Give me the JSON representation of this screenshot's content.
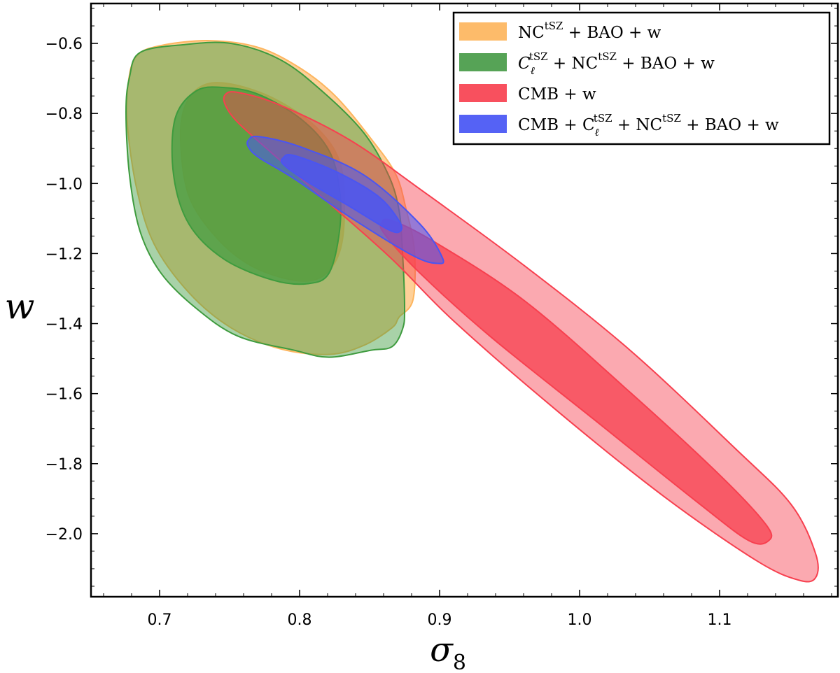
{
  "chart_data": {
    "type": "contour",
    "title": "",
    "xlabel": "σ",
    "xlabel_sub": "8",
    "ylabel": "w",
    "xlim": [
      0.651,
      1.1845
    ],
    "ylim": [
      -2.18,
      -0.486
    ],
    "xticks": [
      0.7,
      0.8,
      0.9,
      1.0,
      1.1
    ],
    "xtick_labels": [
      "0.7",
      "0.8",
      "0.9",
      "1.0",
      "1.1"
    ],
    "yticks": [
      -0.6,
      -0.8,
      -1.0,
      -1.2,
      -1.4,
      -1.6,
      -1.8,
      -2.0
    ],
    "ytick_labels": [
      "−0.6",
      "−0.8",
      "−1.0",
      "−1.2",
      "−1.4",
      "−1.6",
      "−1.8",
      "−2.0"
    ],
    "grid": false,
    "legend_placement": "top-right",
    "series": [
      {
        "name": "NC^tSZ + BAO + w",
        "legend": {
          "base": "NC",
          "sup": "tSZ",
          "rest": " + BAO + w"
        },
        "color": "#FDB55E",
        "outer": [
          [
            0.6775,
            -0.716
          ],
          [
            0.6835,
            -0.636
          ],
          [
            0.701,
            -0.606
          ],
          [
            0.736,
            -0.592
          ],
          [
            0.771,
            -0.612
          ],
          [
            0.801,
            -0.672
          ],
          [
            0.826,
            -0.752
          ],
          [
            0.851,
            -0.872
          ],
          [
            0.8685,
            -0.972
          ],
          [
            0.876,
            -1.072
          ],
          [
            0.882,
            -1.192
          ],
          [
            0.881,
            -1.332
          ],
          [
            0.871,
            -1.382
          ],
          [
            0.866,
            -1.412
          ],
          [
            0.846,
            -1.462
          ],
          [
            0.821,
            -1.488
          ],
          [
            0.786,
            -1.472
          ],
          [
            0.751,
            -1.412
          ],
          [
            0.721,
            -1.312
          ],
          [
            0.696,
            -1.172
          ],
          [
            0.6835,
            -1.012
          ],
          [
            0.677,
            -0.832
          ]
        ],
        "inner": [
          [
            0.7185,
            -0.776
          ],
          [
            0.731,
            -0.72
          ],
          [
            0.751,
            -0.716
          ],
          [
            0.781,
            -0.756
          ],
          [
            0.811,
            -0.836
          ],
          [
            0.8285,
            -0.936
          ],
          [
            0.832,
            -1.076
          ],
          [
            0.8285,
            -1.196
          ],
          [
            0.816,
            -1.266
          ],
          [
            0.796,
            -1.276
          ],
          [
            0.766,
            -1.236
          ],
          [
            0.741,
            -1.156
          ],
          [
            0.721,
            -1.036
          ],
          [
            0.715,
            -0.876
          ]
        ]
      },
      {
        "name": "C_ℓ^tSZ + NC^tSZ + BAO + w",
        "legend": {
          "base": "C",
          "sub": "ℓ",
          "sup": "tSZ",
          "rest": " + NC",
          "sup2": "tSZ",
          "rest2": " + BAO + w"
        },
        "color": "#3E9B3E",
        "outer": [
          [
            0.6785,
            -0.696
          ],
          [
            0.686,
            -0.626
          ],
          [
            0.716,
            -0.604
          ],
          [
            0.751,
            -0.6
          ],
          [
            0.786,
            -0.646
          ],
          [
            0.816,
            -0.736
          ],
          [
            0.846,
            -0.856
          ],
          [
            0.8635,
            -0.976
          ],
          [
            0.871,
            -1.076
          ],
          [
            0.8735,
            -1.196
          ],
          [
            0.875,
            -1.356
          ],
          [
            0.8735,
            -1.416
          ],
          [
            0.866,
            -1.466
          ],
          [
            0.851,
            -1.476
          ],
          [
            0.821,
            -1.496
          ],
          [
            0.796,
            -1.476
          ],
          [
            0.756,
            -1.436
          ],
          [
            0.726,
            -1.356
          ],
          [
            0.701,
            -1.256
          ],
          [
            0.686,
            -1.136
          ],
          [
            0.6785,
            -0.976
          ],
          [
            0.676,
            -0.796
          ]
        ],
        "inner": [
          [
            0.711,
            -0.816
          ],
          [
            0.726,
            -0.736
          ],
          [
            0.746,
            -0.726
          ],
          [
            0.771,
            -0.746
          ],
          [
            0.801,
            -0.816
          ],
          [
            0.821,
            -0.906
          ],
          [
            0.8285,
            -1.016
          ],
          [
            0.8285,
            -1.136
          ],
          [
            0.821,
            -1.256
          ],
          [
            0.806,
            -1.286
          ],
          [
            0.781,
            -1.276
          ],
          [
            0.746,
            -1.216
          ],
          [
            0.721,
            -1.116
          ],
          [
            0.71,
            -0.976
          ]
        ]
      },
      {
        "name": "CMB + w",
        "legend": {
          "base": "CMB + w"
        },
        "color": "#F7404F",
        "outer": [
          [
            0.747,
            -0.746
          ],
          [
            0.756,
            -0.74
          ],
          [
            0.786,
            -0.776
          ],
          [
            0.836,
            -0.876
          ],
          [
            0.886,
            -1.016
          ],
          [
            0.961,
            -1.236
          ],
          [
            1.036,
            -1.476
          ],
          [
            1.111,
            -1.756
          ],
          [
            1.151,
            -1.916
          ],
          [
            1.1685,
            -2.056
          ],
          [
            1.1685,
            -2.126
          ],
          [
            1.156,
            -2.132
          ],
          [
            1.126,
            -2.076
          ],
          [
            1.061,
            -1.896
          ],
          [
            0.986,
            -1.656
          ],
          [
            0.911,
            -1.396
          ],
          [
            0.866,
            -1.216
          ],
          [
            0.821,
            -1.056
          ],
          [
            0.781,
            -0.916
          ],
          [
            0.756,
            -0.826
          ],
          [
            0.747,
            -0.776
          ]
        ],
        "inner": [
          [
            0.8585,
            -1.112
          ],
          [
            0.866,
            -1.106
          ],
          [
            0.896,
            -1.166
          ],
          [
            0.961,
            -1.336
          ],
          [
            1.036,
            -1.596
          ],
          [
            1.101,
            -1.836
          ],
          [
            1.1335,
            -1.976
          ],
          [
            1.135,
            -2.02
          ],
          [
            1.121,
            -2.02
          ],
          [
            1.086,
            -1.916
          ],
          [
            1.011,
            -1.676
          ],
          [
            0.936,
            -1.436
          ],
          [
            0.886,
            -1.256
          ],
          [
            0.861,
            -1.146
          ]
        ]
      },
      {
        "name": "CMB + C_ℓ^tSZ + NC^tSZ + BAO + w",
        "legend": {
          "base": "CMB + C",
          "sub": "ℓ",
          "sup": "tSZ",
          "rest": " + NC",
          "sup2": "tSZ",
          "rest2": " + BAO + w"
        },
        "color": "#4A55F2",
        "outer": [
          [
            0.7635,
            -0.876
          ],
          [
            0.771,
            -0.866
          ],
          [
            0.801,
            -0.896
          ],
          [
            0.846,
            -0.976
          ],
          [
            0.886,
            -1.116
          ],
          [
            0.902,
            -1.212
          ],
          [
            0.8985,
            -1.228
          ],
          [
            0.881,
            -1.206
          ],
          [
            0.836,
            -1.096
          ],
          [
            0.796,
            -0.986
          ],
          [
            0.771,
            -0.926
          ],
          [
            0.7635,
            -0.896
          ]
        ],
        "inner": [
          [
            0.7885,
            -0.926
          ],
          [
            0.796,
            -0.92
          ],
          [
            0.826,
            -0.966
          ],
          [
            0.856,
            -1.036
          ],
          [
            0.871,
            -1.106
          ],
          [
            0.872,
            -1.136
          ],
          [
            0.8635,
            -1.132
          ],
          [
            0.836,
            -1.066
          ],
          [
            0.806,
            -0.996
          ],
          [
            0.7885,
            -0.946
          ]
        ]
      }
    ]
  }
}
